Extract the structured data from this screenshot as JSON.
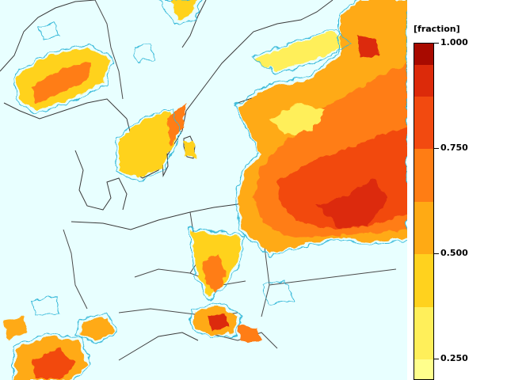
{
  "map": {
    "colors": {
      "sea": "#e8ffff",
      "land": "#e8ffff",
      "coast": "#3a3a3a",
      "border": "#4a4a4a",
      "contour": "#34b8d8"
    }
  },
  "legend": {
    "title": "[fraction]",
    "ticks": [
      {
        "value": 1.0,
        "label": "1.000"
      },
      {
        "value": 0.75,
        "label": "0.750"
      },
      {
        "value": 0.5,
        "label": "0.500"
      },
      {
        "value": 0.25,
        "label": "0.250"
      }
    ],
    "bins": [
      {
        "from": 0.2,
        "to": 0.25,
        "color": "#ffff8c"
      },
      {
        "from": 0.25,
        "to": 0.375,
        "color": "#ffef5a"
      },
      {
        "from": 0.375,
        "to": 0.5,
        "color": "#ffd21e"
      },
      {
        "from": 0.5,
        "to": 0.625,
        "color": "#ffaa14"
      },
      {
        "from": 0.625,
        "to": 0.75,
        "color": "#ff7d14"
      },
      {
        "from": 0.75,
        "to": 0.875,
        "color": "#f24a10"
      },
      {
        "from": 0.875,
        "to": 0.95,
        "color": "#dc2a0a"
      },
      {
        "from": 0.95,
        "to": 1.0,
        "color": "#a80a00"
      }
    ]
  }
}
